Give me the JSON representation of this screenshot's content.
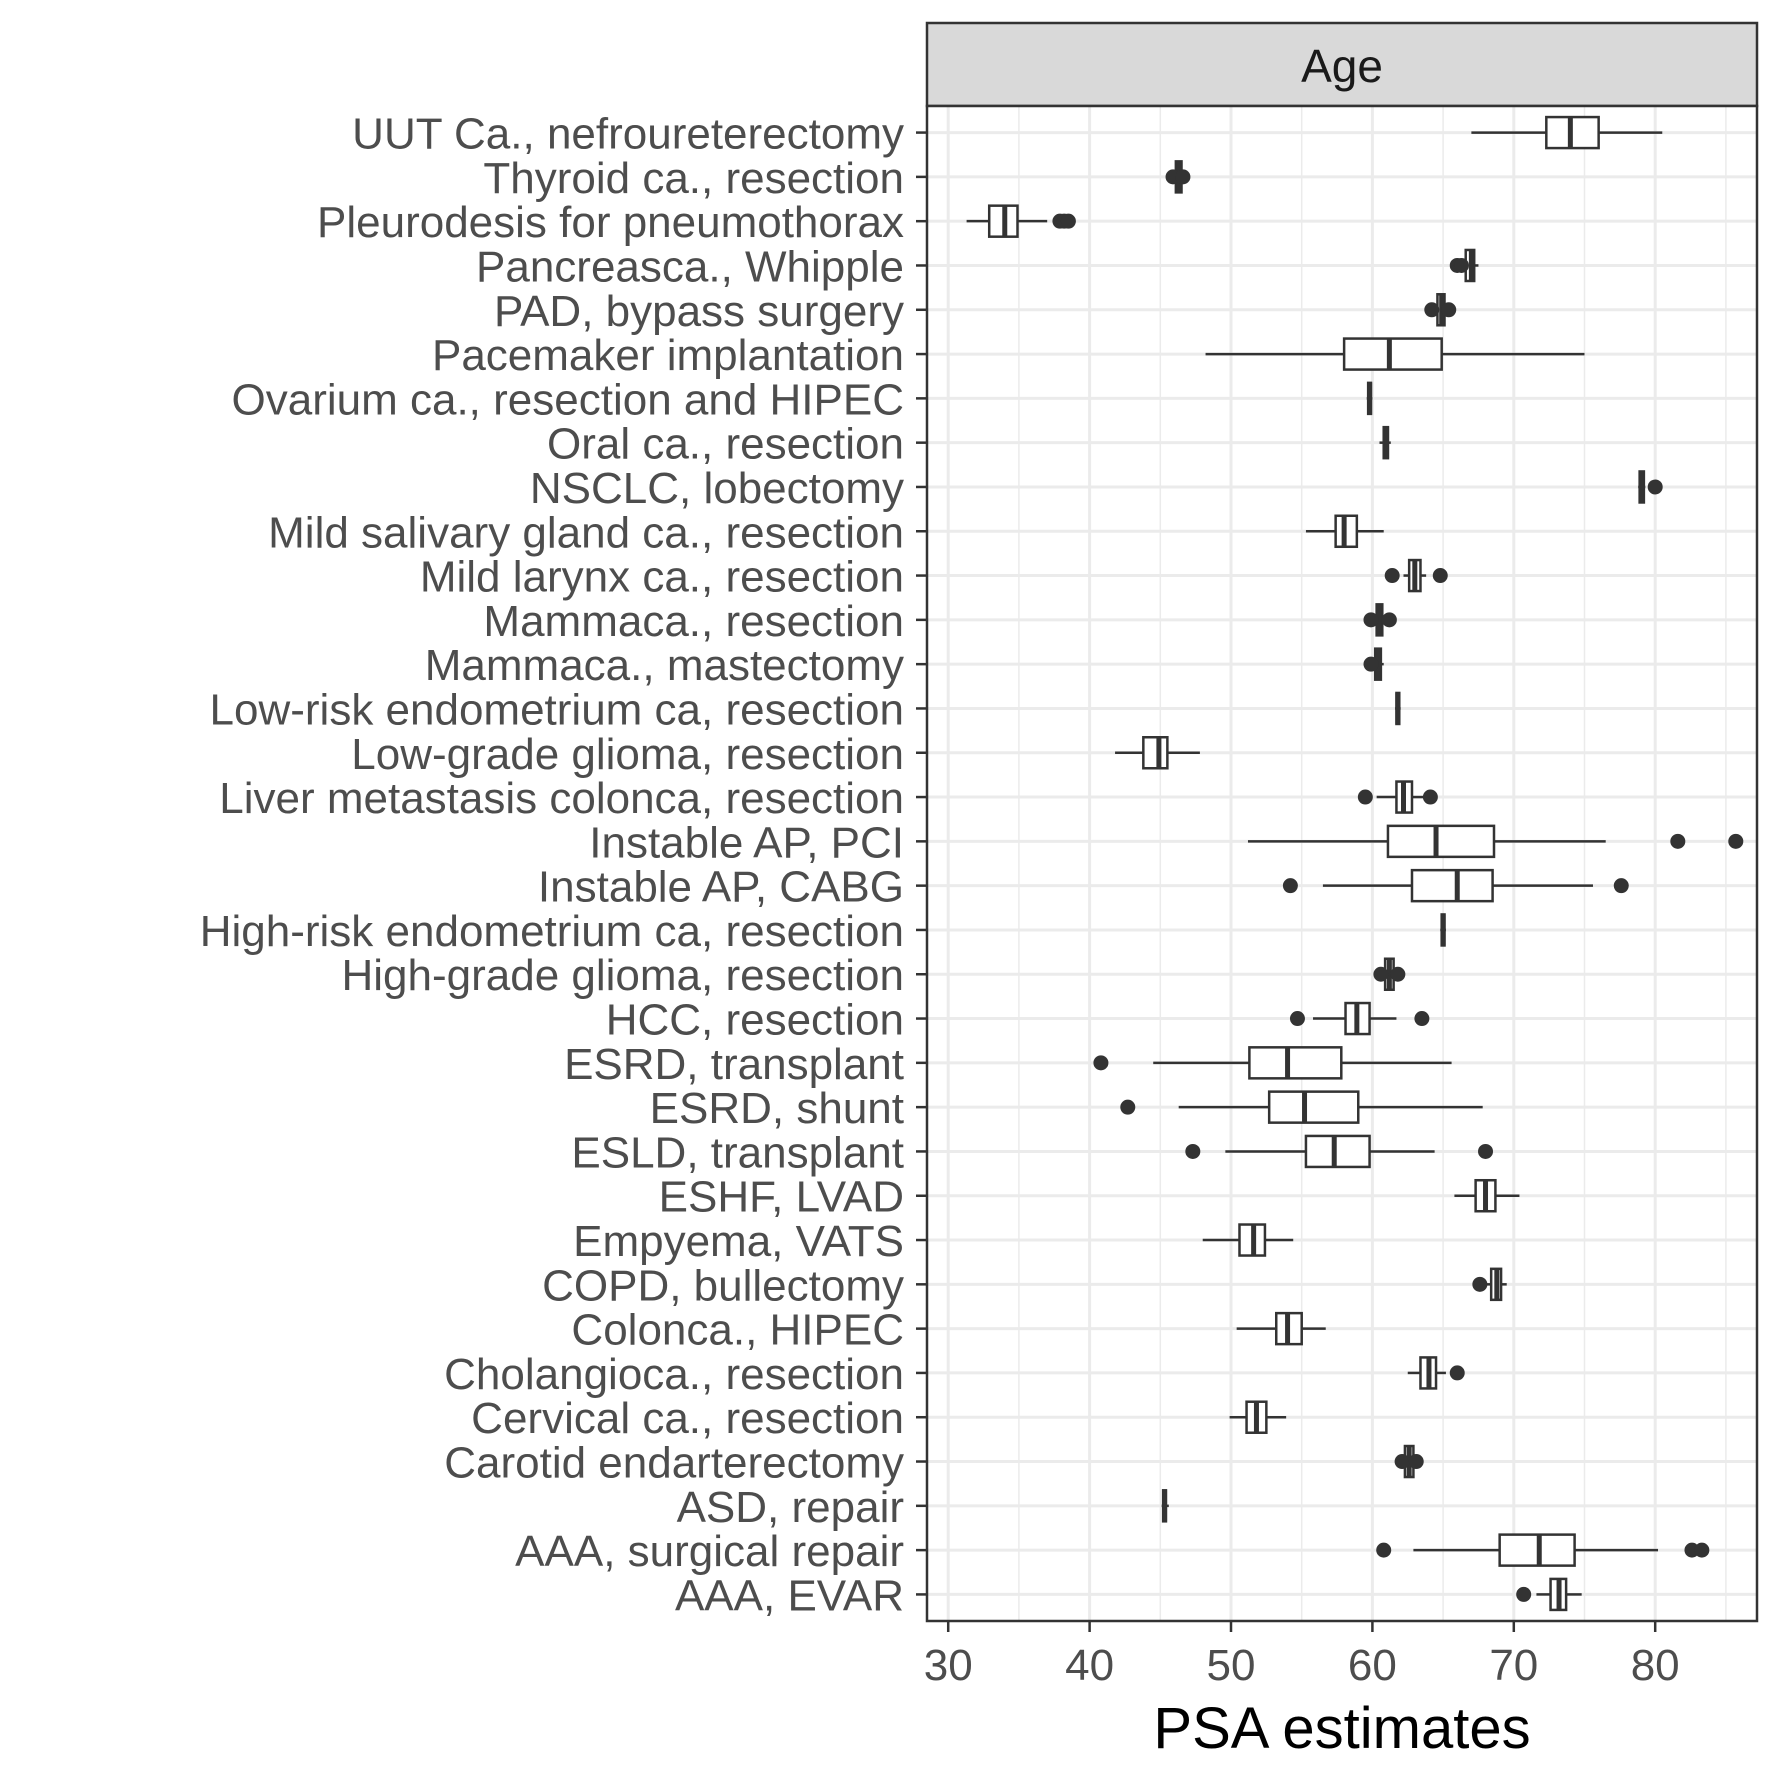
{
  "chart_data": {
    "type": "boxplot",
    "orientation": "horizontal",
    "facet_label": "Age",
    "xlabel": "PSA estimates",
    "ylabel": "",
    "xlim": [
      28.5,
      87.2
    ],
    "x_ticks": [
      30,
      40,
      50,
      60,
      70,
      80
    ],
    "grid": true,
    "categories": [
      "UUT Ca., nefroureterectomy",
      "Thyroid ca., resection",
      "Pleurodesis for pneumothorax",
      "Pancreasca., Whipple",
      "PAD, bypass surgery",
      "Pacemaker implantation",
      "Ovarium ca., resection and HIPEC",
      "Oral ca., resection",
      "NSCLC, lobectomy",
      "Mild salivary gland ca., resection",
      "Mild larynx ca., resection",
      "Mammaca., resection",
      "Mammaca., mastectomy",
      "Low-risk endometrium ca, resection",
      "Low-grade glioma, resection",
      "Liver metastasis colonca, resection",
      "Instable AP, PCI",
      "Instable AP, CABG",
      "High-risk endometrium ca, resection",
      "High-grade glioma, resection",
      "HCC, resection",
      "ESRD, transplant",
      "ESRD, shunt",
      "ESLD, transplant",
      "ESHF, LVAD",
      "Empyema, VATS",
      "COPD, bullectomy",
      "Colonca., HIPEC",
      "Cholangioca., resection",
      "Cervical ca., resection",
      "Carotid endarterectomy",
      "ASD, repair",
      "AAA, surgical repair",
      "AAA, EVAR"
    ],
    "boxes": [
      {
        "min": 67.0,
        "q1": 72.3,
        "median": 74.0,
        "q3": 76.0,
        "max": 80.5,
        "outliers": []
      },
      {
        "min": 45.9,
        "q1": 46.1,
        "median": 46.3,
        "q3": 46.5,
        "max": 46.7,
        "outliers": [
          45.9,
          46.6
        ]
      },
      {
        "min": 31.3,
        "q1": 32.9,
        "median": 34.0,
        "q3": 34.9,
        "max": 37.0,
        "outliers": [
          37.9,
          38.2,
          38.5
        ]
      },
      {
        "min": 66.0,
        "q1": 66.6,
        "median": 67.0,
        "q3": 67.2,
        "max": 67.5,
        "outliers": [
          66.0,
          66.3
        ]
      },
      {
        "min": 64.2,
        "q1": 64.6,
        "median": 64.9,
        "q3": 65.1,
        "max": 65.4,
        "outliers": [
          64.2,
          65.4
        ]
      },
      {
        "min": 48.2,
        "q1": 58.0,
        "median": 61.2,
        "q3": 64.9,
        "max": 75.0,
        "outliers": []
      },
      {
        "min": 59.6,
        "q1": 59.7,
        "median": 59.8,
        "q3": 59.9,
        "max": 60.0,
        "outliers": []
      },
      {
        "min": 60.5,
        "q1": 60.8,
        "median": 61.0,
        "q3": 61.1,
        "max": 61.3,
        "outliers": []
      },
      {
        "min": 78.8,
        "q1": 78.9,
        "median": 79.0,
        "q3": 79.2,
        "max": 79.3,
        "outliers": [
          80.0
        ]
      },
      {
        "min": 55.3,
        "q1": 57.4,
        "median": 58.0,
        "q3": 58.9,
        "max": 60.8,
        "outliers": []
      },
      {
        "min": 62.2,
        "q1": 62.6,
        "median": 63.0,
        "q3": 63.4,
        "max": 63.8,
        "outliers": [
          61.4,
          64.8
        ]
      },
      {
        "min": 60.1,
        "q1": 60.3,
        "median": 60.5,
        "q3": 60.7,
        "max": 61.0,
        "outliers": [
          59.9,
          61.2
        ]
      },
      {
        "min": 60.0,
        "q1": 60.2,
        "median": 60.4,
        "q3": 60.6,
        "max": 60.8,
        "outliers": [
          59.9
        ]
      },
      {
        "min": 61.6,
        "q1": 61.7,
        "median": 61.8,
        "q3": 61.9,
        "max": 62.0,
        "outliers": []
      },
      {
        "min": 41.8,
        "q1": 43.8,
        "median": 44.9,
        "q3": 45.5,
        "max": 47.8,
        "outliers": []
      },
      {
        "min": 60.3,
        "q1": 61.7,
        "median": 62.2,
        "q3": 62.8,
        "max": 63.6,
        "outliers": [
          59.5,
          64.1
        ]
      },
      {
        "min": 51.2,
        "q1": 61.1,
        "median": 64.5,
        "q3": 68.6,
        "max": 76.5,
        "outliers": [
          81.6,
          85.7
        ]
      },
      {
        "min": 56.5,
        "q1": 62.8,
        "median": 66.0,
        "q3": 68.5,
        "max": 75.6,
        "outliers": [
          54.2,
          77.6
        ]
      },
      {
        "min": 64.8,
        "q1": 64.9,
        "median": 65.0,
        "q3": 65.1,
        "max": 65.2,
        "outliers": []
      },
      {
        "min": 60.6,
        "q1": 60.9,
        "median": 61.2,
        "q3": 61.5,
        "max": 61.8,
        "outliers": [
          60.6,
          61.8
        ]
      },
      {
        "min": 55.8,
        "q1": 58.1,
        "median": 58.9,
        "q3": 59.8,
        "max": 61.7,
        "outliers": [
          54.7,
          63.5
        ]
      },
      {
        "min": 44.5,
        "q1": 51.3,
        "median": 54.0,
        "q3": 57.8,
        "max": 65.6,
        "outliers": [
          40.8
        ]
      },
      {
        "min": 46.3,
        "q1": 52.7,
        "median": 55.2,
        "q3": 59.0,
        "max": 67.8,
        "outliers": [
          42.7
        ]
      },
      {
        "min": 49.6,
        "q1": 55.3,
        "median": 57.3,
        "q3": 59.8,
        "max": 64.4,
        "outliers": [
          47.3,
          68.0
        ]
      },
      {
        "min": 65.8,
        "q1": 67.3,
        "median": 68.0,
        "q3": 68.7,
        "max": 70.4,
        "outliers": []
      },
      {
        "min": 48.0,
        "q1": 50.6,
        "median": 51.6,
        "q3": 52.4,
        "max": 54.4,
        "outliers": []
      },
      {
        "min": 67.8,
        "q1": 68.4,
        "median": 68.8,
        "q3": 69.1,
        "max": 69.5,
        "outliers": [
          67.6
        ]
      },
      {
        "min": 50.4,
        "q1": 53.2,
        "median": 54.0,
        "q3": 55.0,
        "max": 56.7,
        "outliers": []
      },
      {
        "min": 62.5,
        "q1": 63.4,
        "median": 64.0,
        "q3": 64.5,
        "max": 65.2,
        "outliers": [
          66.0
        ]
      },
      {
        "min": 49.9,
        "q1": 51.1,
        "median": 51.8,
        "q3": 52.5,
        "max": 53.9,
        "outliers": []
      },
      {
        "min": 62.0,
        "q1": 62.3,
        "median": 62.6,
        "q3": 62.9,
        "max": 63.2,
        "outliers": [
          62.1,
          63.1
        ]
      },
      {
        "min": 45.1,
        "q1": 45.2,
        "median": 45.3,
        "q3": 45.4,
        "max": 45.6,
        "outliers": []
      },
      {
        "min": 62.9,
        "q1": 69.0,
        "median": 71.8,
        "q3": 74.3,
        "max": 80.2,
        "outliers": [
          60.8,
          82.6,
          83.3
        ]
      },
      {
        "min": 71.6,
        "q1": 72.6,
        "median": 73.2,
        "q3": 73.7,
        "max": 74.8,
        "outliers": [
          70.7
        ]
      }
    ]
  }
}
